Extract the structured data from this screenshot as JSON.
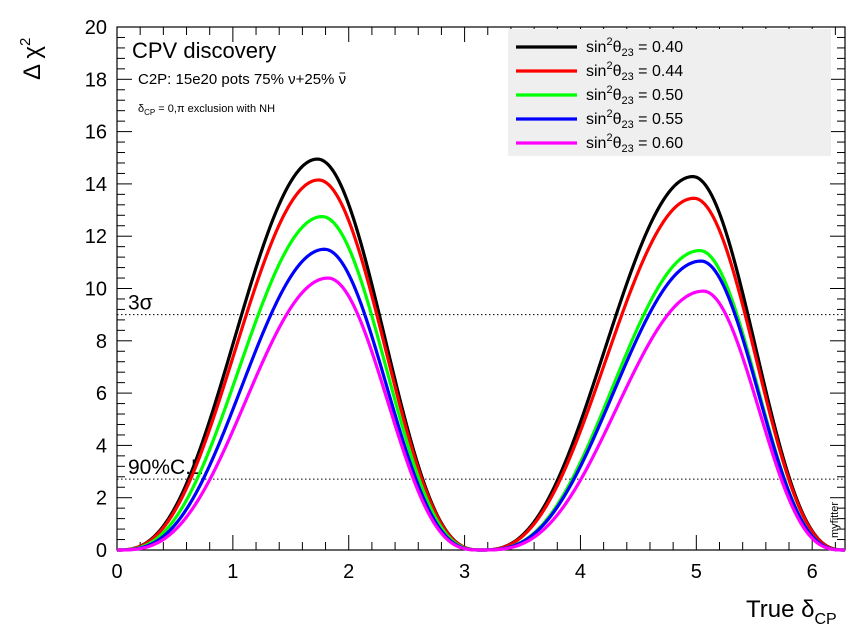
{
  "chart_data": {
    "type": "line",
    "xlim": [
      0,
      6.2832
    ],
    "ylim": [
      0,
      20
    ],
    "x_ticks": [
      "0",
      "1",
      "2",
      "3",
      "4",
      "5",
      "6"
    ],
    "y_ticks": [
      "0",
      "2",
      "4",
      "6",
      "8",
      "10",
      "12",
      "14",
      "16",
      "18",
      "20"
    ],
    "legend_position": "top-right",
    "grid": false,
    "annotations": {
      "title": "CPV discovery",
      "line2_prefix": "C2P: 15e20 pots  75% ",
      "line2_nu": "ν",
      "line2_plus": "+25% ",
      "line2_nubar": "ν",
      "line3_delta": "δ",
      "line3_sub": "CP",
      "line3_rest": " = 0,π exclusion with NH",
      "watermark": "myfitter"
    },
    "axis_labels": {
      "y_base": "Δ χ",
      "y_sup": "2",
      "x_base": "True δ",
      "x_sub": "CP"
    },
    "reference_lines": [
      {
        "label": "3σ",
        "y": 9.0
      },
      {
        "label": "90%C.L.",
        "y": 2.71
      }
    ],
    "legend_parts": {
      "sin": "sin",
      "sup": "2",
      "theta": "θ",
      "sub": "23",
      "eq": " = "
    },
    "series": [
      {
        "name": "0.40",
        "color": "#000000",
        "peak1": {
          "x": 1.73,
          "y": 14.95
        },
        "peak2": {
          "x": 4.97,
          "y": 14.28
        },
        "peak1_shape": 1.35,
        "peak2_shape": 1.35
      },
      {
        "name": "0.44",
        "color": "#ff0000",
        "peak1": {
          "x": 1.74,
          "y": 14.15
        },
        "peak2": {
          "x": 4.98,
          "y": 13.45
        },
        "peak1_shape": 1.35,
        "peak2_shape": 1.35
      },
      {
        "name": "0.50",
        "color": "#00ff00",
        "peak1": {
          "x": 1.77,
          "y": 12.75
        },
        "peak2": {
          "x": 5.03,
          "y": 11.45
        },
        "peak1_shape": 1.4,
        "peak2_shape": 1.45
      },
      {
        "name": "0.55",
        "color": "#0000ff",
        "peak1": {
          "x": 1.79,
          "y": 11.5
        },
        "peak2": {
          "x": 5.04,
          "y": 11.05
        },
        "peak1_shape": 1.45,
        "peak2_shape": 1.45
      },
      {
        "name": "0.60",
        "color": "#ff00ff",
        "peak1": {
          "x": 1.82,
          "y": 10.4
        },
        "peak2": {
          "x": 5.06,
          "y": 9.9
        },
        "peak1_shape": 1.5,
        "peak2_shape": 1.5
      }
    ]
  }
}
